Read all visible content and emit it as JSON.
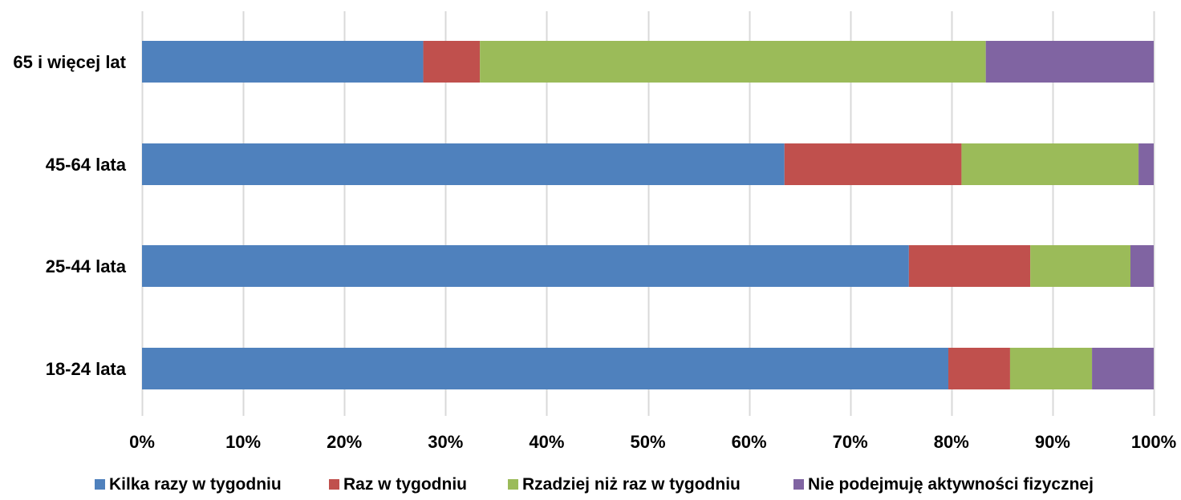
{
  "chart_data": {
    "type": "bar",
    "orientation": "horizontal",
    "stacked": "percent",
    "title": "",
    "xlabel": "",
    "ylabel": "",
    "xlim": [
      0,
      100
    ],
    "x_ticks": [
      "0%",
      "10%",
      "20%",
      "30%",
      "40%",
      "50%",
      "60%",
      "70%",
      "80%",
      "90%",
      "100%"
    ],
    "categories": [
      "65 i więcej lat",
      "45-64 lata",
      "25-44 lata",
      "18-24 lata"
    ],
    "series": [
      {
        "name": "Kilka razy w tygodniu",
        "color": "#4F81BD",
        "values": [
          27.8,
          63.5,
          75.8,
          79.7
        ]
      },
      {
        "name": "Raz w tygodniu",
        "color": "#C0504D",
        "values": [
          5.6,
          17.5,
          12.0,
          6.1
        ]
      },
      {
        "name": "Rzadziej niż raz w tygodniu",
        "color": "#9BBB59",
        "values": [
          50.0,
          17.5,
          9.9,
          8.1
        ]
      },
      {
        "name": "Nie podejmuję aktywności fizycznej",
        "color": "#8064A2",
        "values": [
          16.6,
          1.5,
          2.3,
          6.1
        ]
      }
    ],
    "grid": true,
    "legend_position": "bottom"
  }
}
